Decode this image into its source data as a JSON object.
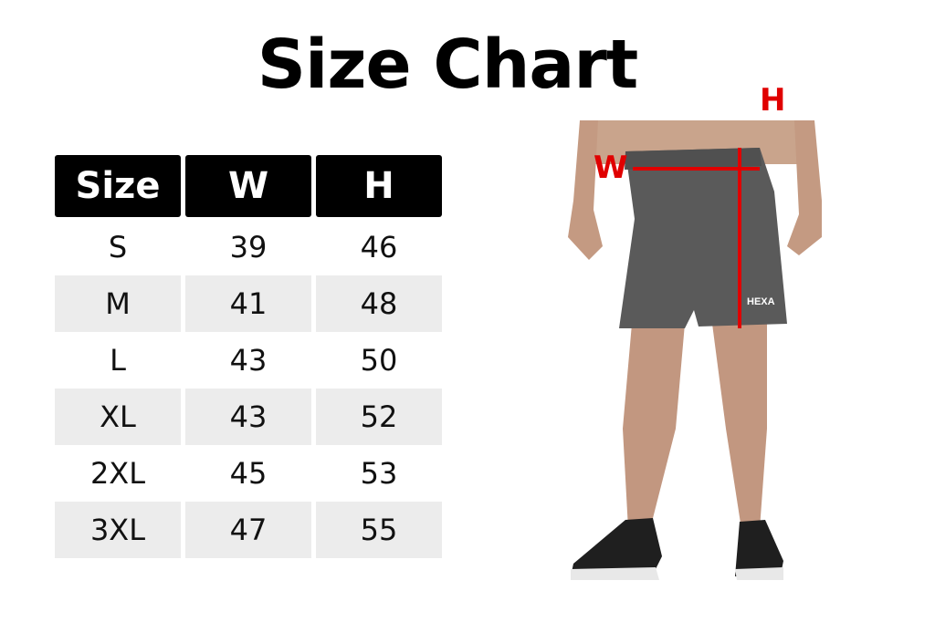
{
  "title": "Size Chart",
  "table": {
    "headers": [
      "Size",
      "W",
      "H"
    ],
    "rows": [
      [
        "S",
        "39",
        "46"
      ],
      [
        "M",
        "41",
        "48"
      ],
      [
        "L",
        "43",
        "50"
      ],
      [
        "XL",
        "43",
        "52"
      ],
      [
        "2XL",
        "45",
        "53"
      ],
      [
        "3XL",
        "47",
        "55"
      ]
    ]
  },
  "photo": {
    "width_label": "W",
    "height_label": "H",
    "brand_logo": "HEXA",
    "measure_color": "#e00000",
    "shorts_color": "#5a5a5a"
  }
}
